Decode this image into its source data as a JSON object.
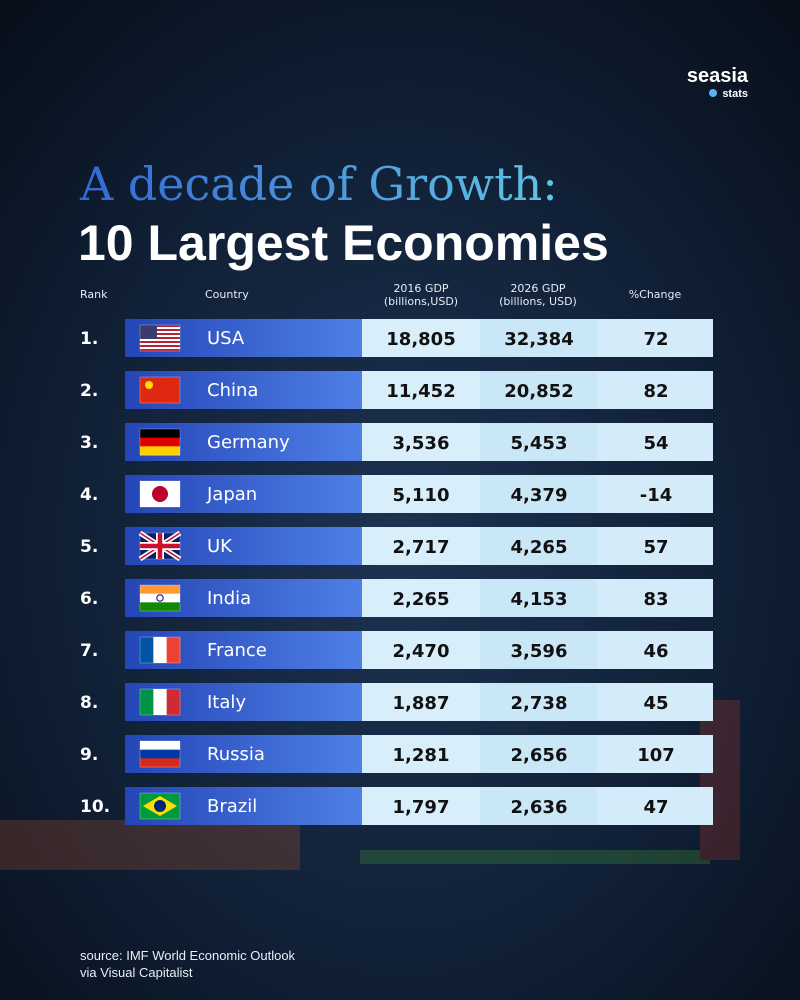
{
  "brand": {
    "name": "seasia",
    "sub": "stats"
  },
  "title": {
    "line1": "A decade of Growth:",
    "line2": "10 Largest Economies"
  },
  "table": {
    "headers": [
      "Rank",
      "Country",
      "2016 GDP\n(billions,USD)",
      "2026 GDP\n(billions, USD)",
      "%Change"
    ],
    "rows": [
      [
        "1.",
        "USA",
        "18,805",
        "32,384",
        "72"
      ],
      [
        "2.",
        "China",
        "11,452",
        "20,852",
        "82"
      ],
      [
        "3.",
        "Germany",
        "3,536",
        "5,453",
        "54"
      ],
      [
        "4.",
        "Japan",
        "5,110",
        "4,379",
        "-14"
      ],
      [
        "5.",
        "UK",
        "2,717",
        "4,265",
        "57"
      ],
      [
        "6.",
        "India",
        "2,265",
        "4,153",
        "83"
      ],
      [
        "7.",
        "France",
        "2,470",
        "3,596",
        "46"
      ],
      [
        "8.",
        "Italy",
        "1,887",
        "2,738",
        "45"
      ],
      [
        "9.",
        "Russia",
        "1,281",
        "2,656",
        "107"
      ],
      [
        "10.",
        "Brazil",
        "1,797",
        "2,636",
        "47"
      ]
    ]
  },
  "source": {
    "line1": "source: IMF World Economic Outlook",
    "line2": "via Visual Capitalist"
  }
}
